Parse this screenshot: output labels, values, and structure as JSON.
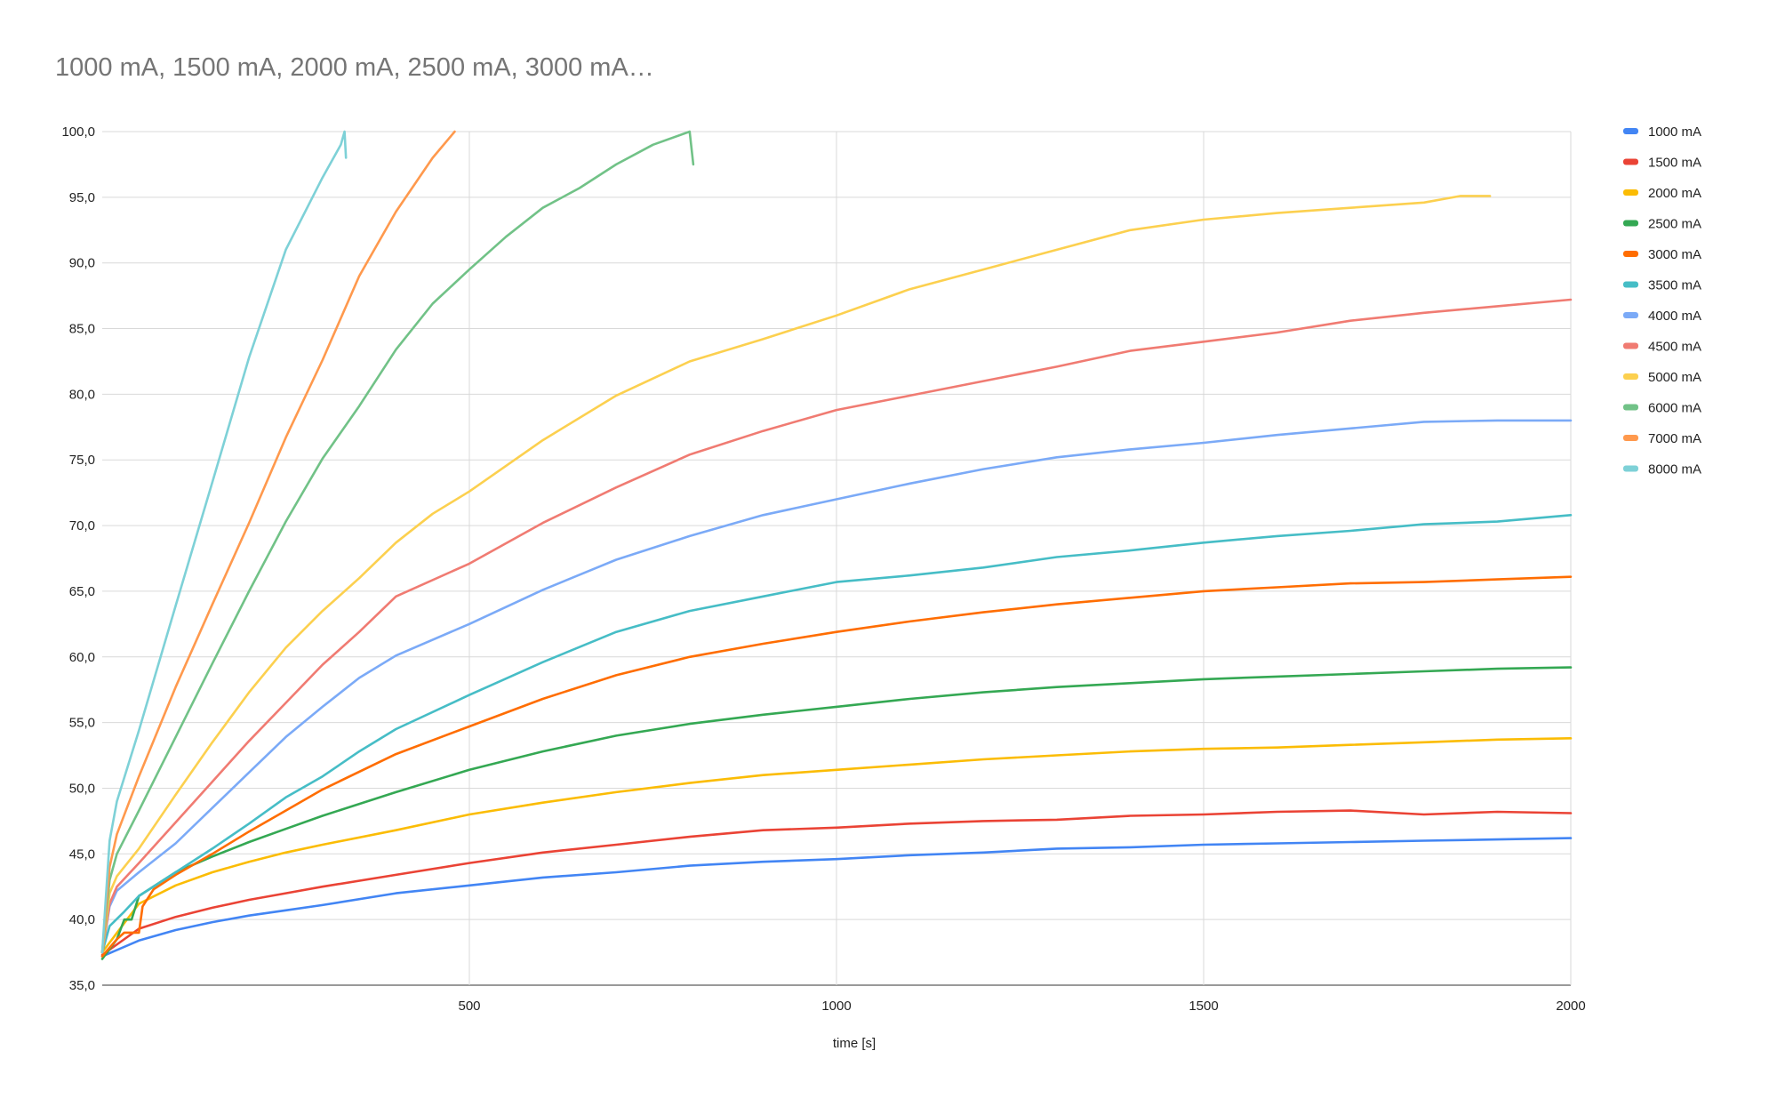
{
  "chart_data": {
    "type": "line",
    "title": "1000 mA, 1500 mA, 2000 mA, 2500 mA, 3000 mA…",
    "xlabel": "time [s]",
    "ylabel": "",
    "xlim": [
      0,
      2000
    ],
    "ylim": [
      35,
      100
    ],
    "x_ticks": [
      500,
      1000,
      1500,
      2000
    ],
    "x_tick_labels": [
      "500",
      "1000",
      "1500",
      "2000"
    ],
    "y_ticks": [
      35,
      40,
      45,
      50,
      55,
      60,
      65,
      70,
      75,
      80,
      85,
      90,
      95,
      100
    ],
    "y_tick_labels": [
      "35,0",
      "40,0",
      "45,0",
      "50,0",
      "55,0",
      "60,0",
      "65,0",
      "70,0",
      "75,0",
      "80,0",
      "85,0",
      "90,0",
      "95,0",
      "100,0"
    ],
    "grid": true,
    "legend_position": "right",
    "series": [
      {
        "name": "1000 mA",
        "color": "#4285f4",
        "x": [
          0,
          50,
          100,
          150,
          200,
          250,
          300,
          400,
          500,
          600,
          700,
          800,
          900,
          1000,
          1100,
          1200,
          1300,
          1400,
          1500,
          1600,
          1700,
          1800,
          1900,
          2000
        ],
        "y": [
          37.2,
          38.4,
          39.2,
          39.8,
          40.3,
          40.7,
          41.1,
          42.0,
          42.6,
          43.2,
          43.6,
          44.1,
          44.4,
          44.6,
          44.9,
          45.1,
          45.4,
          45.5,
          45.7,
          45.8,
          45.9,
          46.0,
          46.1,
          46.2
        ]
      },
      {
        "name": "1500 mA",
        "color": "#ea4335",
        "x": [
          0,
          50,
          100,
          150,
          200,
          250,
          300,
          400,
          500,
          600,
          700,
          800,
          900,
          1000,
          1100,
          1200,
          1300,
          1400,
          1500,
          1600,
          1700,
          1800,
          1900,
          2000
        ],
        "y": [
          37.3,
          39.3,
          40.2,
          40.9,
          41.5,
          42.0,
          42.5,
          43.4,
          44.3,
          45.1,
          45.7,
          46.3,
          46.8,
          47.0,
          47.3,
          47.5,
          47.6,
          47.9,
          48.0,
          48.2,
          48.3,
          48.0,
          48.2,
          48.1
        ]
      },
      {
        "name": "2000 mA",
        "color": "#fbbc04",
        "x": [
          0,
          50,
          100,
          150,
          200,
          250,
          300,
          400,
          500,
          600,
          700,
          800,
          900,
          1000,
          1100,
          1200,
          1300,
          1400,
          1500,
          1600,
          1700,
          1800,
          1900,
          2000
        ],
        "y": [
          37.5,
          41.2,
          42.6,
          43.6,
          44.4,
          45.1,
          45.7,
          46.8,
          48.0,
          48.9,
          49.7,
          50.4,
          51.0,
          51.4,
          51.8,
          52.2,
          52.5,
          52.8,
          53.0,
          53.1,
          53.3,
          53.5,
          53.7,
          53.8
        ]
      },
      {
        "name": "2500 mA",
        "color": "#34a853",
        "x": [
          0,
          20,
          30,
          40,
          50,
          100,
          150,
          200,
          250,
          300,
          400,
          500,
          600,
          700,
          800,
          900,
          1000,
          1100,
          1200,
          1300,
          1400,
          1500,
          1600,
          1700,
          1800,
          1900,
          2000
        ],
        "y": [
          37.0,
          38.5,
          40.0,
          40.0,
          41.8,
          43.6,
          44.8,
          45.9,
          46.9,
          47.9,
          49.7,
          51.4,
          52.8,
          54.0,
          54.9,
          55.6,
          56.2,
          56.8,
          57.3,
          57.7,
          58.0,
          58.3,
          58.5,
          58.7,
          58.9,
          59.1,
          59.2
        ]
      },
      {
        "name": "3000 mA",
        "color": "#ff6d01",
        "x": [
          0,
          20,
          30,
          50,
          55,
          70,
          100,
          150,
          200,
          250,
          300,
          400,
          500,
          600,
          700,
          800,
          900,
          1000,
          1100,
          1200,
          1300,
          1400,
          1500,
          1600,
          1700,
          1800,
          1900,
          2000
        ],
        "y": [
          37.2,
          38.5,
          39.0,
          39.0,
          41.0,
          42.3,
          43.4,
          45.0,
          46.7,
          48.3,
          49.9,
          52.6,
          54.7,
          56.8,
          58.6,
          60.0,
          61.0,
          61.9,
          62.7,
          63.4,
          64.0,
          64.5,
          65.0,
          65.3,
          65.6,
          65.7,
          65.9,
          66.1
        ]
      },
      {
        "name": "3500 mA",
        "color": "#46bdc6",
        "x": [
          0,
          10,
          30,
          50,
          100,
          150,
          200,
          250,
          300,
          350,
          400,
          500,
          600,
          700,
          800,
          900,
          1000,
          1100,
          1200,
          1300,
          1400,
          1500,
          1600,
          1700,
          1800,
          1900,
          2000
        ],
        "y": [
          37.5,
          39.5,
          40.6,
          41.8,
          43.6,
          45.4,
          47.3,
          49.3,
          50.9,
          52.8,
          54.5,
          57.1,
          59.6,
          61.9,
          63.5,
          64.6,
          65.7,
          66.2,
          66.8,
          67.6,
          68.1,
          68.7,
          69.2,
          69.6,
          70.1,
          70.3,
          70.8
        ]
      },
      {
        "name": "4000 mA",
        "color": "#7baaf7",
        "x": [
          0,
          10,
          20,
          50,
          100,
          150,
          200,
          250,
          300,
          350,
          400,
          500,
          600,
          700,
          800,
          900,
          1000,
          1100,
          1200,
          1300,
          1400,
          1500,
          1600,
          1700,
          1800,
          1900,
          2000
        ],
        "y": [
          37.5,
          41.0,
          42.2,
          43.6,
          45.8,
          48.5,
          51.2,
          53.9,
          56.2,
          58.4,
          60.1,
          62.5,
          65.1,
          67.4,
          69.2,
          70.8,
          72.0,
          73.2,
          74.3,
          75.2,
          75.8,
          76.3,
          76.9,
          77.4,
          77.9,
          78.0,
          78.0
        ]
      },
      {
        "name": "4500 mA",
        "color": "#f07b72",
        "x": [
          0,
          10,
          20,
          50,
          100,
          150,
          200,
          250,
          300,
          350,
          400,
          500,
          600,
          700,
          800,
          900,
          1000,
          1100,
          1200,
          1300,
          1400,
          1500,
          1600,
          1700,
          1800,
          1900,
          2000
        ],
        "y": [
          37.5,
          41.2,
          42.5,
          44.3,
          47.4,
          50.5,
          53.6,
          56.5,
          59.4,
          61.9,
          64.6,
          67.1,
          70.2,
          72.9,
          75.4,
          77.2,
          78.8,
          79.9,
          81.0,
          82.1,
          83.3,
          84.0,
          84.7,
          85.6,
          86.2,
          86.7,
          87.2
        ]
      },
      {
        "name": "5000 mA",
        "color": "#fcd04f",
        "x": [
          0,
          10,
          20,
          50,
          100,
          150,
          200,
          250,
          300,
          350,
          400,
          450,
          500,
          600,
          700,
          800,
          900,
          1000,
          1100,
          1200,
          1300,
          1400,
          1500,
          1600,
          1700,
          1800,
          1850,
          1890
        ],
        "y": [
          37.5,
          42.0,
          43.3,
          45.4,
          49.5,
          53.5,
          57.3,
          60.7,
          63.5,
          66.0,
          68.7,
          70.9,
          72.6,
          76.5,
          79.9,
          82.5,
          84.2,
          86.0,
          88.0,
          89.5,
          91.0,
          92.5,
          93.3,
          93.8,
          94.2,
          94.6,
          95.1,
          95.1
        ]
      },
      {
        "name": "6000 mA",
        "color": "#71c287",
        "x": [
          0,
          10,
          20,
          50,
          100,
          150,
          200,
          250,
          300,
          350,
          400,
          450,
          500,
          550,
          600,
          650,
          700,
          750,
          800,
          805
        ],
        "y": [
          37.5,
          43.0,
          45.0,
          48.3,
          53.9,
          59.5,
          65.0,
          70.3,
          75.1,
          79.1,
          83.4,
          86.9,
          89.5,
          92.0,
          94.2,
          95.7,
          97.5,
          99.0,
          100.0,
          97.5
        ]
      },
      {
        "name": "7000 mA",
        "color": "#ff994d",
        "x": [
          0,
          10,
          20,
          50,
          100,
          150,
          200,
          250,
          300,
          350,
          400,
          450,
          480
        ],
        "y": [
          37.5,
          44.0,
          46.5,
          50.9,
          57.7,
          64.0,
          70.2,
          76.7,
          82.6,
          89.0,
          93.9,
          98.0,
          100.0
        ]
      },
      {
        "name": "8000 mA",
        "color": "#7ed1d7",
        "x": [
          0,
          10,
          20,
          50,
          100,
          150,
          200,
          250,
          300,
          325,
          330,
          332
        ],
        "y": [
          37.5,
          46.0,
          49.0,
          54.4,
          63.9,
          73.3,
          82.8,
          91.0,
          96.5,
          99.0,
          100.0,
          98.0
        ]
      }
    ]
  }
}
